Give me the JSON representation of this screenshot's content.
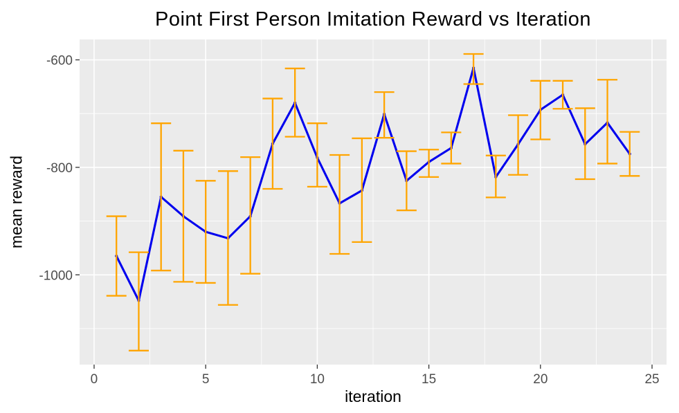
{
  "chart_data": {
    "type": "line",
    "title": "Point First Person Imitation Reward vs Iteration",
    "xlabel": "iteration",
    "ylabel": "mean reward",
    "x_ticks": [
      0,
      5,
      10,
      15,
      20,
      25
    ],
    "y_ticks": [
      -600,
      -800,
      -1000
    ],
    "x_minor_ticks": [
      2.5,
      7.5,
      12.5,
      17.5,
      22.5
    ],
    "y_minor_ticks": [
      -700,
      -900,
      -1100
    ],
    "xlim": [
      -0.65,
      25.65
    ],
    "ylim": [
      -1167,
      -562
    ],
    "grid": true,
    "legend": false,
    "colors": {
      "line": "#0000EE",
      "error_bar": "#FFA500",
      "panel_bg": "#EBEBEB",
      "grid": "#FFFFFF",
      "tick_label": "#4D4D4D",
      "tick_mark": "#333333",
      "title": "#000000"
    },
    "series": [
      {
        "name": "mean reward",
        "x": [
          1,
          2,
          3,
          4,
          5,
          6,
          7,
          8,
          9,
          10,
          11,
          12,
          13,
          14,
          15,
          16,
          17,
          18,
          19,
          20,
          21,
          22,
          23,
          24
        ],
        "y": [
          -965,
          -1048,
          -855,
          -891,
          -920,
          -932,
          -891,
          -756,
          -680,
          -782,
          -867,
          -843,
          -701,
          -825,
          -790,
          -764,
          -615,
          -818,
          -757,
          -693,
          -665,
          -757,
          -717,
          -775
        ],
        "y_upper": [
          -891,
          -958,
          -718,
          -769,
          -825,
          -807,
          -781,
          -672,
          -616,
          -718,
          -777,
          -746,
          -660,
          -770,
          -767,
          -735,
          -589,
          -778,
          -703,
          -639,
          -639,
          -690,
          -637,
          -734
        ],
        "y_lower": [
          -1039,
          -1141,
          -992,
          -1013,
          -1015,
          -1056,
          -998,
          -840,
          -743,
          -836,
          -961,
          -939,
          -745,
          -880,
          -818,
          -793,
          -645,
          -856,
          -814,
          -748,
          -691,
          -822,
          -793,
          -816
        ]
      }
    ]
  }
}
